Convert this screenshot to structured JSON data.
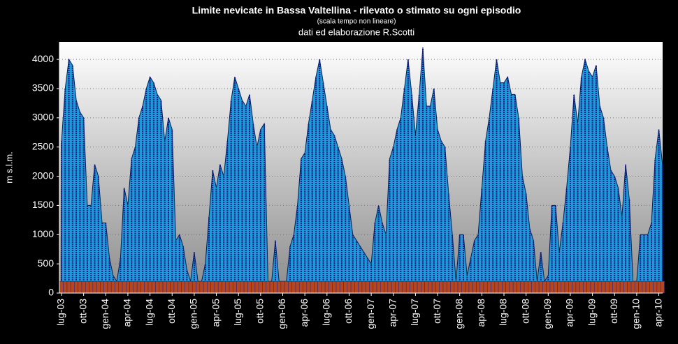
{
  "chart_data": {
    "type": "area",
    "title": "Limite nevicate in Bassa Valtellina  - rilevato o stimato su ogni episodio",
    "subtitle": "(scala tempo non lineare)",
    "credit": "dati ed elaborazione R.Scotti",
    "y_label": "m s.l.m.",
    "categories": [
      "lug-03",
      null,
      null,
      null,
      null,
      null,
      "ott-03",
      null,
      null,
      null,
      null,
      null,
      "gen-04",
      null,
      null,
      null,
      null,
      null,
      "apr-04",
      null,
      null,
      null,
      null,
      null,
      "lug-04",
      null,
      null,
      null,
      null,
      null,
      "ott-04",
      null,
      null,
      null,
      null,
      null,
      "gen-05",
      null,
      null,
      null,
      null,
      null,
      "apr-05",
      null,
      null,
      null,
      null,
      null,
      "lug-05",
      null,
      null,
      null,
      null,
      null,
      "ott-05",
      null,
      null,
      null,
      null,
      null,
      "gen-06",
      null,
      null,
      null,
      null,
      null,
      "apr-06",
      null,
      null,
      null,
      null,
      null,
      "lug-06",
      null,
      null,
      null,
      null,
      null,
      "ott-06",
      null,
      null,
      null,
      null,
      null,
      "gen-07",
      null,
      null,
      null,
      null,
      null,
      "apr-07",
      null,
      null,
      null,
      null,
      null,
      "lug-07",
      null,
      null,
      null,
      null,
      null,
      "ott-07",
      null,
      null,
      null,
      null,
      null,
      "gen-08",
      null,
      null,
      null,
      null,
      null,
      "apr-08",
      null,
      null,
      null,
      null,
      null,
      "lug-08",
      null,
      null,
      null,
      null,
      null,
      "ott-08",
      null,
      null,
      null,
      null,
      null,
      "gen-09",
      null,
      null,
      null,
      null,
      null,
      "apr-09",
      null,
      null,
      null,
      null,
      null,
      "lug-09",
      null,
      null,
      null,
      null,
      null,
      "ott-09",
      null,
      null,
      null,
      null,
      null,
      "gen-10",
      null,
      null,
      null,
      null,
      null,
      "apr-10",
      null
    ],
    "series": [
      {
        "color": "#1e9bd7",
        "values": [
          2600,
          3500,
          4000,
          3900,
          3300,
          3100,
          3000,
          1500,
          1500,
          2200,
          2000,
          1200,
          1200,
          600,
          300,
          200,
          600,
          1800,
          1500,
          2300,
          2500,
          3000,
          3200,
          3500,
          3700,
          3600,
          3400,
          3300,
          2600,
          3000,
          2800,
          900,
          1000,
          800,
          400,
          200,
          700,
          200,
          200,
          500,
          1300,
          2100,
          1800,
          2200,
          2000,
          2600,
          3300,
          3700,
          3500,
          3300,
          3200,
          3400,
          2900,
          2500,
          2800,
          2900,
          200,
          200,
          900,
          200,
          200,
          200,
          800,
          1000,
          1500,
          2300,
          2400,
          2900,
          3300,
          3700,
          4000,
          3600,
          3200,
          2800,
          2700,
          2500,
          2300,
          2000,
          1500,
          1000,
          900,
          800,
          700,
          600,
          500,
          1200,
          1500,
          1200,
          1000,
          2300,
          2500,
          2800,
          3000,
          3500,
          4000,
          3400,
          2700,
          3400,
          4200,
          3200,
          3200,
          3500,
          2800,
          2600,
          2500,
          1700,
          1000,
          200,
          1000,
          1000,
          300,
          600,
          900,
          1000,
          1800,
          2600,
          3000,
          3500,
          4000,
          3600,
          3600,
          3700,
          3400,
          3400,
          3000,
          2000,
          1700,
          1100,
          900,
          200,
          700,
          200,
          300,
          1500,
          1500,
          700,
          1200,
          1800,
          2500,
          3400,
          2900,
          3700,
          4000,
          3800,
          3700,
          3900,
          3200,
          3000,
          2500,
          2100,
          2000,
          1800,
          1300,
          2200,
          1600,
          200,
          200,
          1000,
          1000,
          1000,
          1200,
          2300,
          2800,
          2200
        ]
      },
      {
        "color": "#b5461e",
        "values": [
          200,
          200,
          200,
          200,
          200,
          200,
          200,
          200,
          200,
          200,
          200,
          200,
          200,
          200,
          200,
          200,
          200,
          200,
          200,
          200,
          200,
          200,
          200,
          200,
          200,
          200,
          200,
          200,
          200,
          200,
          200,
          200,
          200,
          200,
          200,
          200,
          200,
          200,
          200,
          200,
          200,
          200,
          200,
          200,
          200,
          200,
          200,
          200,
          200,
          200,
          200,
          200,
          200,
          200,
          200,
          200,
          200,
          200,
          200,
          200,
          200,
          200,
          200,
          200,
          200,
          200,
          200,
          200,
          200,
          200,
          200,
          200,
          200,
          200,
          200,
          200,
          200,
          200,
          200,
          200,
          200,
          200,
          200,
          200,
          200,
          200,
          200,
          200,
          200,
          200,
          200,
          200,
          200,
          200,
          200,
          200,
          200,
          200,
          200,
          200,
          200,
          200,
          200,
          200,
          200,
          200,
          200,
          200,
          200,
          200,
          200,
          200,
          200,
          200,
          200,
          200,
          200,
          200,
          200,
          200,
          200,
          200,
          200,
          200,
          200,
          200,
          200,
          200,
          200,
          200,
          200,
          200,
          200,
          200,
          200,
          200,
          200,
          200,
          200,
          200,
          200,
          200,
          200,
          200,
          200,
          200,
          200,
          200,
          200,
          200,
          200,
          200,
          200,
          200,
          200,
          200,
          200,
          200,
          200,
          200,
          200,
          200,
          200,
          200
        ]
      }
    ],
    "ylim": [
      0,
      4300
    ],
    "yticks": [
      0,
      500,
      1000,
      1500,
      2000,
      2500,
      3000,
      3500,
      4000
    ],
    "grid": true
  }
}
